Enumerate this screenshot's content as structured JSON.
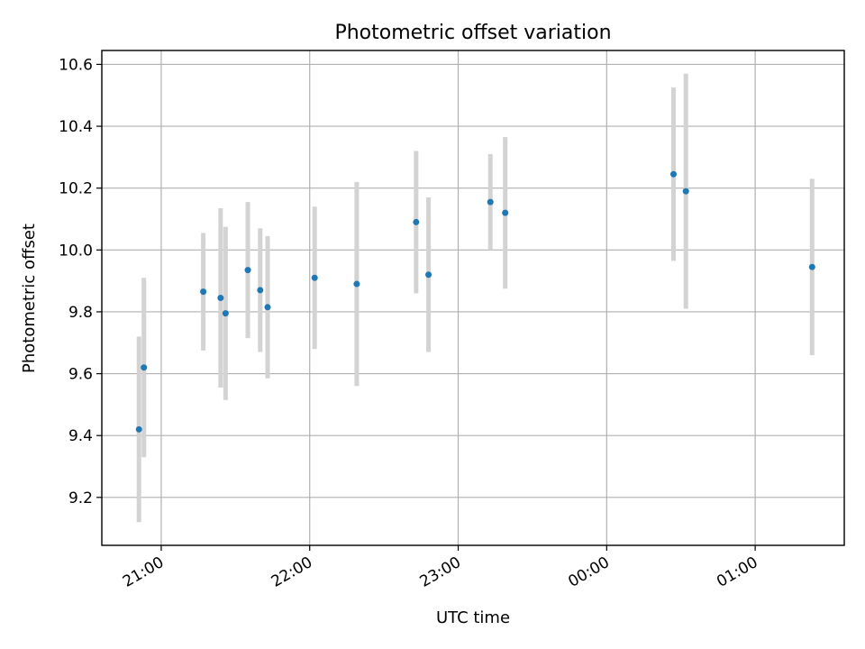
{
  "chart_data": {
    "type": "scatter",
    "title": "Photometric offset variation",
    "xlabel": "UTC time",
    "ylabel": "Photometric offset",
    "x_axis": "time",
    "xlim": [
      "20:36",
      "25:36"
    ],
    "ylim": [
      9.045,
      10.645
    ],
    "grid": true,
    "xticks": [
      "21:00",
      "22:00",
      "23:00",
      "00:00",
      "01:00"
    ],
    "yticks": [
      "9.2",
      "9.4",
      "9.6",
      "9.8",
      "10.0",
      "10.2",
      "10.4",
      "10.6"
    ],
    "point_color": "#1f77b4",
    "errorbar_color": "#d3d3d3",
    "points": [
      {
        "t": "20:51",
        "y": 9.42,
        "err": 0.3
      },
      {
        "t": "20:53",
        "y": 9.62,
        "err": 0.29
      },
      {
        "t": "21:17",
        "y": 9.865,
        "err": 0.19
      },
      {
        "t": "21:24",
        "y": 9.845,
        "err": 0.29
      },
      {
        "t": "21:26",
        "y": 9.795,
        "err": 0.28
      },
      {
        "t": "21:35",
        "y": 9.935,
        "err": 0.22
      },
      {
        "t": "21:40",
        "y": 9.87,
        "err": 0.2
      },
      {
        "t": "21:43",
        "y": 9.815,
        "err": 0.23
      },
      {
        "t": "22:02",
        "y": 9.91,
        "err": 0.23
      },
      {
        "t": "22:19",
        "y": 9.89,
        "err": 0.33
      },
      {
        "t": "22:43",
        "y": 10.09,
        "err": 0.23
      },
      {
        "t": "22:48",
        "y": 9.92,
        "err": 0.25
      },
      {
        "t": "23:13",
        "y": 10.155,
        "err": 0.155
      },
      {
        "t": "23:19",
        "y": 10.12,
        "err": 0.245
      },
      {
        "t": "24:27",
        "y": 10.245,
        "err": 0.28
      },
      {
        "t": "24:32",
        "y": 10.19,
        "err": 0.38
      },
      {
        "t": "25:23",
        "y": 9.945,
        "err": 0.285
      }
    ]
  }
}
